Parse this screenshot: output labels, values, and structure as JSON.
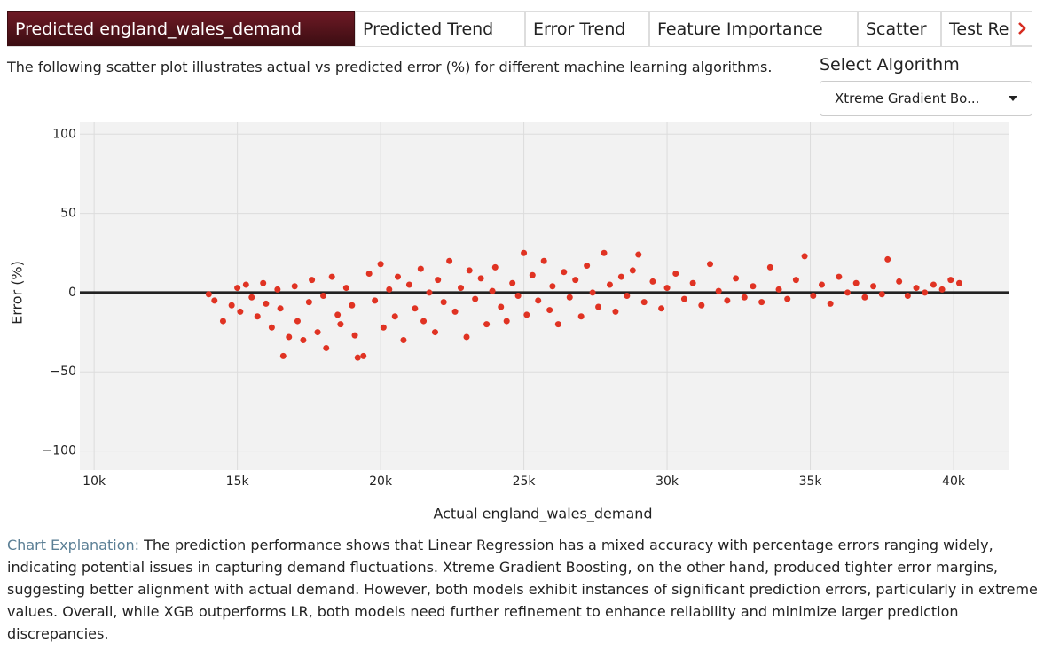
{
  "tabs": [
    "Predicted england_wales_demand",
    "Predicted Trend",
    "Error Trend",
    "Feature Importance",
    "Scatter",
    "Test Re"
  ],
  "description": "The following scatter plot illustrates actual vs predicted error (%) for different machine learning algorithms.",
  "select_label": "Select Algorithm",
  "select_value": "Xtreme Gradient Bo...",
  "chart_data": {
    "type": "scatter",
    "x_label": "Actual england_wales_demand",
    "y_label": "Error (%)",
    "color": "#e03323",
    "grid": true,
    "zeroline": true,
    "xlim": [
      9500,
      41950
    ],
    "ylim": [
      -112,
      108
    ],
    "xticks": [
      {
        "value": 10000,
        "label": "10k"
      },
      {
        "value": 15000,
        "label": "15k"
      },
      {
        "value": 20000,
        "label": "20k"
      },
      {
        "value": 25000,
        "label": "25k"
      },
      {
        "value": 30000,
        "label": "30k"
      },
      {
        "value": 35000,
        "label": "35k"
      },
      {
        "value": 40000,
        "label": "40k"
      }
    ],
    "yticks": [
      {
        "value": -100,
        "label": "−100"
      },
      {
        "value": -50,
        "label": "−50"
      },
      0,
      50,
      100
    ],
    "x": [
      14000,
      14200,
      14500,
      14800,
      15000,
      15100,
      15300,
      15500,
      15700,
      15900,
      16000,
      16200,
      16400,
      16500,
      16600,
      16800,
      17000,
      17100,
      17300,
      17500,
      17600,
      17800,
      18000,
      18100,
      18300,
      18500,
      18600,
      18800,
      19000,
      19100,
      19200,
      19400,
      19600,
      19800,
      20000,
      20100,
      20300,
      20500,
      20600,
      20800,
      21000,
      21200,
      21400,
      21500,
      21700,
      21900,
      22000,
      22200,
      22400,
      22600,
      22800,
      23000,
      23100,
      23300,
      23500,
      23700,
      23900,
      24000,
      24200,
      24400,
      24600,
      24800,
      25000,
      25100,
      25300,
      25500,
      25700,
      25900,
      26000,
      26200,
      26400,
      26600,
      26800,
      27000,
      27200,
      27400,
      27600,
      27800,
      28000,
      28200,
      28400,
      28600,
      28800,
      29000,
      29200,
      29500,
      29800,
      30000,
      30300,
      30600,
      30900,
      31200,
      31500,
      31800,
      32100,
      32400,
      32700,
      33000,
      33300,
      33600,
      33900,
      34200,
      34500,
      34800,
      35100,
      35400,
      35700,
      36000,
      36300,
      36600,
      36900,
      37200,
      37500,
      37700,
      38100,
      38400,
      38700,
      39000,
      39300,
      39600,
      39900,
      40200
    ],
    "values": [
      -1,
      -5,
      -18,
      -8,
      3,
      -12,
      5,
      -3,
      -15,
      6,
      -7,
      -22,
      2,
      -10,
      -40,
      -28,
      4,
      -18,
      -30,
      -6,
      8,
      -25,
      -2,
      -35,
      10,
      -14,
      -20,
      3,
      -8,
      -27,
      -41,
      -40,
      12,
      -5,
      18,
      -22,
      2,
      -15,
      10,
      -30,
      5,
      -10,
      15,
      -18,
      0,
      -25,
      8,
      -6,
      20,
      -12,
      3,
      -28,
      14,
      -4,
      9,
      -20,
      1,
      16,
      -9,
      -18,
      6,
      -2,
      25,
      -14,
      11,
      -5,
      20,
      -11,
      4,
      -20,
      13,
      -3,
      8,
      -15,
      17,
      0,
      -9,
      25,
      5,
      -12,
      10,
      -2,
      14,
      24,
      -6,
      7,
      -10,
      3,
      12,
      -4,
      6,
      -8,
      18,
      1,
      -5,
      9,
      -3,
      4,
      -6,
      16,
      2,
      -4,
      8,
      23,
      -2,
      5,
      -7,
      10,
      0,
      6,
      -3,
      4,
      -1,
      21,
      7,
      -2,
      3,
      0,
      5,
      2,
      8,
      6
    ]
  },
  "explanation": {
    "label": "Chart Explanation:",
    "text": "The prediction performance shows that Linear Regression has a mixed accuracy with percentage errors ranging widely, indicating potential issues in capturing demand fluctuations. Xtreme Gradient Boosting, on the other hand, produced tighter error margins, suggesting better alignment with actual demand. However, both models exhibit instances of significant prediction errors, particularly in extreme values. Overall, while XGB outperforms LR, both models need further refinement to enhance reliability and minimize larger prediction discrepancies."
  }
}
